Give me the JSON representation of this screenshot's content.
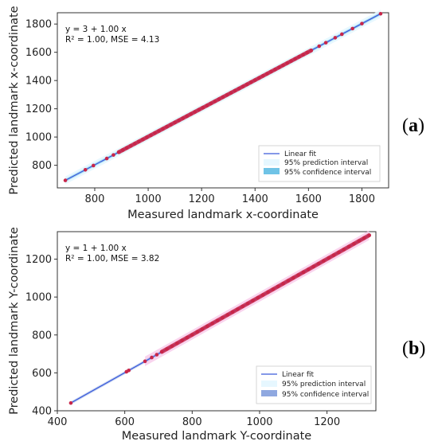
{
  "colors": {
    "fit_line": "#3b5bdb",
    "points": "#c8264a",
    "prediction_band": "#e6f7ff",
    "confidence_band": "#6fc3e6",
    "confidence_band_b": "#8fa8e0",
    "pink_band": "#f7c6e8"
  },
  "chart_data": [
    {
      "type": "scatter",
      "panel_label": "a",
      "equation": "y = 3 + 1.00 x",
      "stats": "R² = 1.00, MSE = 4.13",
      "xlabel": "Measured landmark x-coordinate",
      "ylabel": "Predicted landmark x-coordinate",
      "xlim": [
        660,
        1900
      ],
      "ylim": [
        640,
        1880
      ],
      "xticks": [
        800,
        1000,
        1200,
        1400,
        1600,
        1800
      ],
      "yticks": [
        800,
        1000,
        1200,
        1400,
        1600,
        1800
      ],
      "fit": {
        "intercept": 3,
        "slope": 1.0,
        "x_range": [
          690,
          1870
        ]
      },
      "legend": {
        "position": "bottom-right",
        "entries": [
          "Linear fit",
          "95% prediction interval",
          "95% confidence interval"
        ]
      },
      "x": [
        690,
        765,
        795,
        845,
        870,
        890,
        905,
        920,
        935,
        950,
        965,
        980,
        995,
        1010,
        1025,
        1040,
        1055,
        1070,
        1085,
        1100,
        1115,
        1130,
        1145,
        1160,
        1175,
        1190,
        1205,
        1220,
        1235,
        1250,
        1265,
        1280,
        1295,
        1310,
        1325,
        1340,
        1355,
        1370,
        1385,
        1400,
        1415,
        1430,
        1445,
        1460,
        1475,
        1490,
        1505,
        1520,
        1535,
        1550,
        1565,
        1580,
        1595,
        1610,
        1640,
        1665,
        1700,
        1725,
        1765,
        1800,
        1870
      ]
    },
    {
      "type": "scatter",
      "panel_label": "b",
      "equation": "y = 1 + 1.00 x",
      "stats": "R² = 1.00, MSE = 3.82",
      "xlabel": "Measured landmark Y-coordinate",
      "ylabel": "Predicted landmark Y-coordinate",
      "xlim": [
        400,
        1345
      ],
      "ylim": [
        400,
        1345
      ],
      "xticks": [
        400,
        600,
        800,
        1000,
        1200
      ],
      "yticks": [
        400,
        600,
        800,
        1000,
        1200
      ],
      "fit": {
        "intercept": 1,
        "slope": 1.0,
        "x_range": [
          440,
          1325
        ]
      },
      "legend": {
        "position": "bottom-right",
        "entries": [
          "Linear fit",
          "95% prediction interval",
          "95% confidence interval"
        ]
      },
      "x": [
        440,
        605,
        612,
        660,
        680,
        695,
        710,
        725,
        740,
        755,
        770,
        785,
        800,
        815,
        830,
        845,
        860,
        875,
        890,
        905,
        920,
        935,
        950,
        965,
        980,
        995,
        1010,
        1025,
        1040,
        1055,
        1070,
        1085,
        1100,
        1115,
        1130,
        1145,
        1160,
        1175,
        1190,
        1205,
        1220,
        1235,
        1250,
        1265,
        1280,
        1295,
        1310,
        1325
      ]
    }
  ]
}
